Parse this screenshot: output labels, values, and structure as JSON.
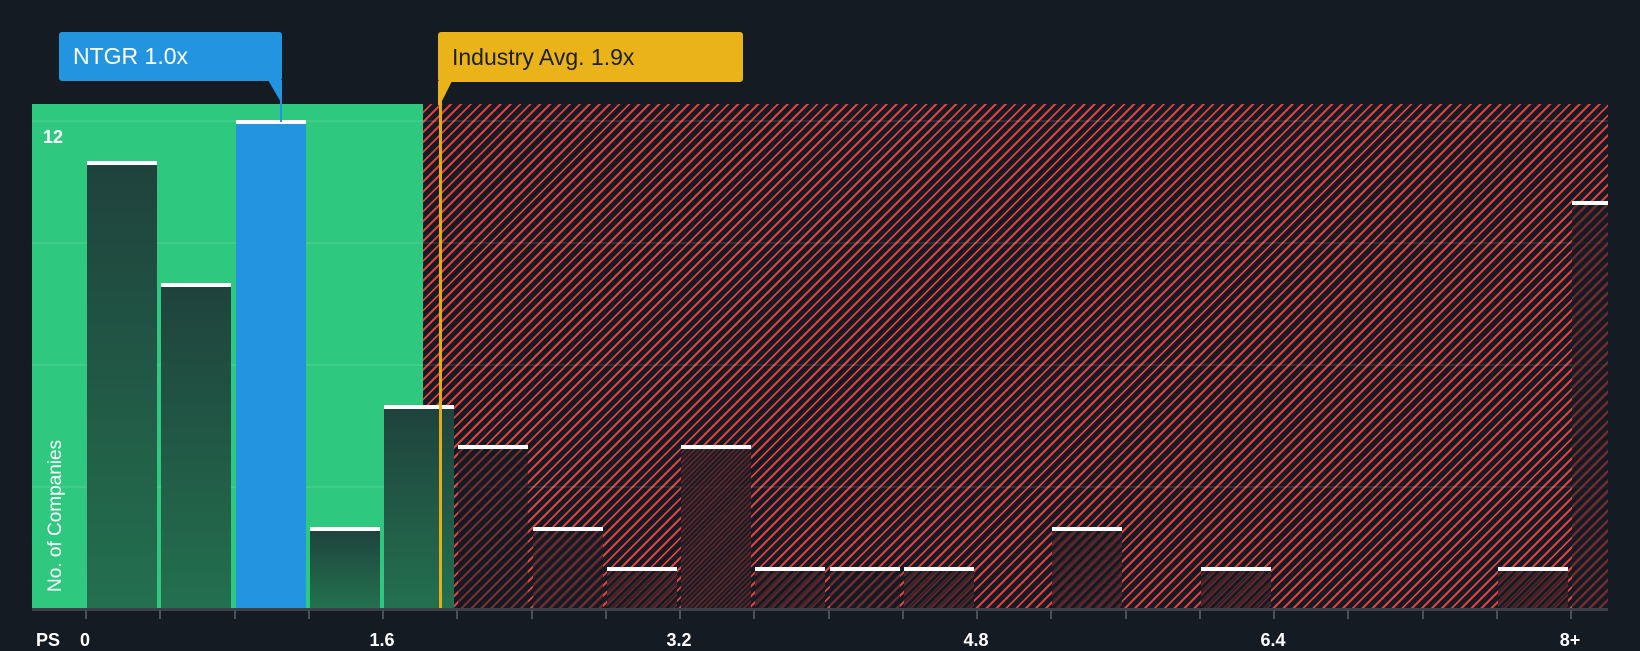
{
  "callouts": {
    "company": {
      "label": "NTGR 1.0x",
      "ticker": "NTGR",
      "value": 1.0,
      "color": "#2394e0"
    },
    "industry": {
      "label": "Industry Avg. 1.9x",
      "value": 1.9,
      "color": "#eab31a"
    }
  },
  "axes": {
    "x_prefix": "PS",
    "y_label": "No. of Companies",
    "y_top_label": "12"
  },
  "colors": {
    "background": "#151b23",
    "undervalued_zone": "#2ec97f",
    "overvalued_hatch": "#e0403f",
    "bar_highlight": "#2394e0",
    "bar_cap": "#ffffff"
  },
  "chart_data": {
    "type": "bar",
    "title": "",
    "xlabel": "PS",
    "ylabel": "No. of Companies",
    "x_tick_labels": [
      "0",
      "1.6",
      "3.2",
      "4.8",
      "6.4",
      "8+"
    ],
    "x_tick_values": [
      0,
      1.6,
      3.2,
      4.8,
      6.4,
      8
    ],
    "bin_width": 0.4,
    "categories": [
      "0-0.4",
      "0.4-0.8",
      "0.8-1.2",
      "1.2-1.6",
      "1.6-2.0",
      "2.0-2.4",
      "2.4-2.8",
      "2.8-3.2",
      "3.2-3.6",
      "3.6-4.0",
      "4.0-4.4",
      "4.4-4.8",
      "4.8-5.2",
      "5.2-5.6",
      "5.6-6.0",
      "6.0-6.4",
      "6.4-6.8",
      "6.8-7.2",
      "7.2-7.6",
      "7.6-8.0",
      "8+"
    ],
    "values": [
      11,
      8,
      12,
      2,
      5,
      4,
      2,
      1,
      4,
      1,
      1,
      1,
      0,
      2,
      0,
      1,
      0,
      0,
      0,
      1,
      10
    ],
    "highlight_index": 2,
    "highlight_label": "NTGR 1.0x",
    "reference_line": {
      "label": "Industry Avg. 1.9x",
      "value": 1.9
    },
    "undervalued_zone_end": 1.82,
    "ylim": [
      0,
      12.5
    ],
    "y_gridlines": [
      3,
      6,
      9,
      12
    ],
    "y_visible_tick": 12,
    "grid": true,
    "legend": "none"
  }
}
